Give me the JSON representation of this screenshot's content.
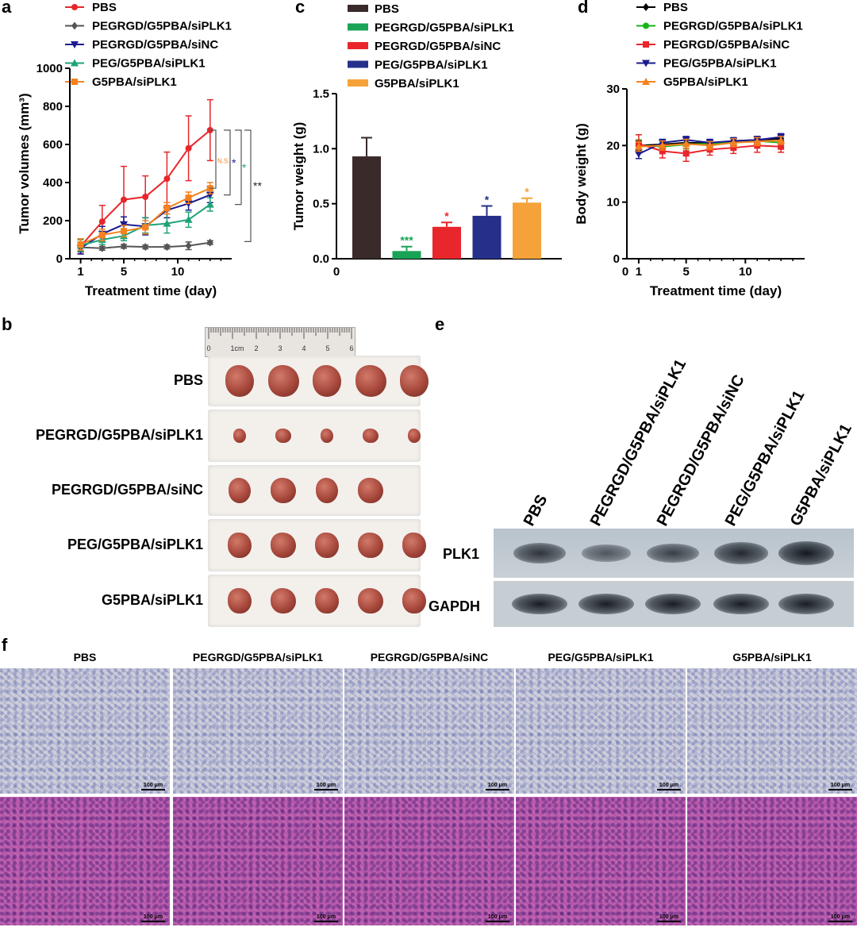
{
  "panel_letters": {
    "a": "a",
    "b": "b",
    "c": "c",
    "d": "d",
    "e": "e",
    "f": "f"
  },
  "groups": [
    "PBS",
    "PEGRGD/G5PBA/siPLK1",
    "PEGRGD/G5PBA/siNC",
    "PEG/G5PBA/siPLK1",
    "G5PBA/siPLK1"
  ],
  "colors": {
    "PBS": "#e8262b",
    "PEGRGD": "#555555",
    "siNC": "#1b1b8f",
    "PEG": "#1fa37a",
    "G5PBA": "#f5821f"
  },
  "chart_data": [
    {
      "panel": "a",
      "type": "line",
      "xlabel": "Treatment time (day)",
      "ylabel": "Tumor volumes (mm³)",
      "xlim": [
        0,
        15
      ],
      "ylim": [
        0,
        1000
      ],
      "xticks": [
        1,
        5,
        10
      ],
      "yticks": [
        0,
        200,
        400,
        600,
        800,
        1000
      ],
      "series": [
        {
          "name": "PBS",
          "color": "#e8262b",
          "marker": "circle",
          "x": [
            1,
            3,
            5,
            7,
            9,
            11,
            13
          ],
          "y": [
            65,
            195,
            310,
            325,
            420,
            580,
            675
          ],
          "err": [
            40,
            85,
            175,
            110,
            140,
            170,
            160
          ]
        },
        {
          "name": "PEGRGD/G5PBA/siPLK1",
          "color": "#555555",
          "marker": "diamond",
          "x": [
            1,
            3,
            5,
            7,
            9,
            11,
            13
          ],
          "y": [
            60,
            55,
            65,
            62,
            62,
            68,
            85
          ],
          "err": [
            25,
            10,
            10,
            10,
            10,
            20,
            10
          ]
        },
        {
          "name": "PEGRGD/G5PBA/siNC",
          "color": "#1b1b8f",
          "marker": "triangle-down",
          "x": [
            1,
            3,
            5,
            7,
            9,
            11,
            13
          ],
          "y": [
            55,
            130,
            180,
            170,
            255,
            290,
            335
          ],
          "err": [
            30,
            40,
            40,
            45,
            40,
            35,
            40
          ]
        },
        {
          "name": "PEG/G5PBA/siPLK1",
          "color": "#1fa37a",
          "marker": "triangle-up",
          "x": [
            1,
            3,
            5,
            7,
            9,
            11,
            13
          ],
          "y": [
            70,
            100,
            120,
            175,
            185,
            205,
            285
          ],
          "err": [
            30,
            25,
            25,
            40,
            50,
            40,
            35
          ]
        },
        {
          "name": "G5PBA/siPLK1",
          "color": "#f5821f",
          "marker": "square",
          "x": [
            1,
            3,
            5,
            7,
            9,
            11,
            13
          ],
          "y": [
            75,
            125,
            145,
            165,
            265,
            320,
            370
          ],
          "err": [
            30,
            30,
            30,
            35,
            30,
            30,
            30
          ]
        }
      ],
      "annotations": {
        "ns": "N.S.",
        "star1": "*",
        "star2": "*",
        "star3": "**"
      }
    },
    {
      "panel": "c",
      "type": "bar",
      "ylabel": "Tumor weight (g)",
      "ylim": [
        0,
        1.5
      ],
      "yticks": [
        "0.0",
        "0.5",
        "1.0",
        "1.5"
      ],
      "x_origin_label": "0",
      "categories": [
        "PBS",
        "PEGRGD/G5PBA/siPLK1",
        "PEGRGD/G5PBA/siNC",
        "PEG/G5PBA/siPLK1",
        "G5PBA/siPLK1"
      ],
      "values": [
        0.93,
        0.07,
        0.29,
        0.39,
        0.51
      ],
      "err": [
        0.17,
        0.04,
        0.04,
        0.09,
        0.04
      ],
      "bar_colors": [
        "#3a2a2a",
        "#19a356",
        "#e8262b",
        "#26308a",
        "#f5a23a"
      ],
      "sig": [
        "",
        "***",
        "*",
        "*",
        "*"
      ]
    },
    {
      "panel": "d",
      "type": "line",
      "xlabel": "Treatment time (day)",
      "ylabel": "Body weight (g)",
      "xlim": [
        0,
        15
      ],
      "ylim": [
        0,
        30
      ],
      "xticks": [
        1,
        5,
        10
      ],
      "yticks": [
        0,
        10,
        20,
        30
      ],
      "x_origin_label": "0",
      "series": [
        {
          "name": "PBS",
          "color": "#000000",
          "marker": "diamond",
          "x": [
            1,
            3,
            5,
            7,
            9,
            11,
            13
          ],
          "y": [
            20.0,
            20.2,
            20.5,
            20.4,
            20.8,
            21.0,
            21.2
          ],
          "err": [
            0.8,
            0.6,
            0.6,
            0.5,
            0.5,
            0.6,
            0.6
          ]
        },
        {
          "name": "PEGRGD/G5PBA/siPLK1",
          "color": "#19b319",
          "marker": "circle",
          "x": [
            1,
            3,
            5,
            7,
            9,
            11,
            13
          ],
          "y": [
            20.0,
            19.8,
            20.2,
            20.3,
            20.5,
            20.8,
            20.5
          ],
          "err": [
            1.0,
            0.8,
            0.8,
            0.7,
            0.8,
            0.8,
            1.0
          ]
        },
        {
          "name": "PEGRGD/G5PBA/siNC",
          "color": "#e8262b",
          "marker": "square",
          "x": [
            1,
            3,
            5,
            7,
            9,
            11,
            13
          ],
          "y": [
            20.3,
            19.0,
            18.6,
            19.3,
            19.6,
            20.0,
            19.8
          ],
          "err": [
            1.6,
            1.2,
            1.4,
            1.0,
            1.0,
            1.2,
            1.0
          ]
        },
        {
          "name": "PEG/G5PBA/siPLK1",
          "color": "#1b1b8f",
          "marker": "triangle-down",
          "x": [
            1,
            3,
            5,
            7,
            9,
            11,
            13
          ],
          "y": [
            18.5,
            20.5,
            21.0,
            20.5,
            20.8,
            21.0,
            21.5
          ],
          "err": [
            0.8,
            0.6,
            0.6,
            0.6,
            0.6,
            0.6,
            0.6
          ]
        },
        {
          "name": "G5PBA/siPLK1",
          "color": "#f5821f",
          "marker": "triangle-up",
          "x": [
            1,
            3,
            5,
            7,
            9,
            11,
            13
          ],
          "y": [
            19.8,
            20.0,
            20.3,
            20.0,
            20.5,
            20.7,
            20.9
          ],
          "err": [
            0.8,
            0.8,
            0.8,
            0.7,
            0.7,
            0.7,
            0.7
          ]
        }
      ]
    }
  ],
  "ruler": {
    "labels": [
      "0",
      "1cm",
      "2",
      "3",
      "4",
      "5",
      "6"
    ]
  },
  "tumors": {
    "counts": [
      5,
      5,
      4,
      5,
      5
    ],
    "sizes": [
      1.0,
      0.45,
      0.8,
      0.82,
      0.82
    ]
  },
  "blot": {
    "rows": [
      {
        "label": "PLK1",
        "intensities": [
          0.75,
          0.45,
          0.65,
          0.85,
          1.0
        ]
      },
      {
        "label": "GAPDH",
        "intensities": [
          0.95,
          0.95,
          0.95,
          0.95,
          0.95
        ]
      }
    ]
  },
  "histology": {
    "scalebar": "100 μm",
    "rows": [
      "ihc",
      "he"
    ]
  }
}
